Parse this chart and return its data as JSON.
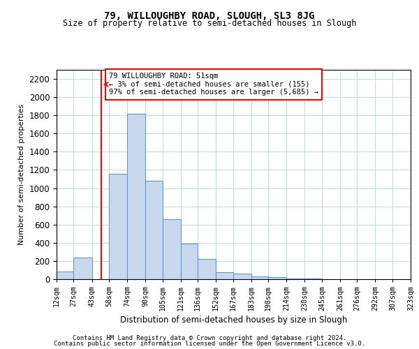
{
  "title1": "79, WILLOUGHBY ROAD, SLOUGH, SL3 8JG",
  "title2": "Size of property relative to semi-detached houses in Slough",
  "xlabel": "Distribution of semi-detached houses by size in Slough",
  "ylabel": "Number of semi-detached properties",
  "annotation_title": "79 WILLOUGHBY ROAD: 51sqm",
  "annotation_line1": "← 3% of semi-detached houses are smaller (155)",
  "annotation_line2": "97% of semi-detached houses are larger (5,685) →",
  "footer1": "Contains HM Land Registry data © Crown copyright and database right 2024.",
  "footer2": "Contains public sector information licensed under the Open Government Licence v3.0.",
  "bin_labels": [
    "12sqm",
    "27sqm",
    "43sqm",
    "58sqm",
    "74sqm",
    "90sqm",
    "105sqm",
    "121sqm",
    "136sqm",
    "152sqm",
    "167sqm",
    "183sqm",
    "198sqm",
    "214sqm",
    "230sqm",
    "245sqm",
    "261sqm",
    "276sqm",
    "292sqm",
    "307sqm",
    "323sqm"
  ],
  "bar_heights": [
    85,
    240,
    0,
    1160,
    1820,
    1080,
    660,
    390,
    220,
    80,
    65,
    30,
    20,
    10,
    5,
    3,
    2,
    1,
    1,
    1,
    0
  ],
  "bar_color": "#c8d9ed",
  "bar_edge_color": "#5b9bd5",
  "property_line_x": 51,
  "property_line_color": "red",
  "ylim": [
    0,
    2300
  ],
  "yticks": [
    0,
    200,
    400,
    600,
    800,
    1000,
    1200,
    1400,
    1600,
    1800,
    2000,
    2200
  ],
  "bin_edges_sqm": [
    12,
    27,
    43,
    58,
    74,
    90,
    105,
    121,
    136,
    152,
    167,
    183,
    198,
    214,
    230,
    245,
    261,
    276,
    292,
    307,
    323
  ]
}
